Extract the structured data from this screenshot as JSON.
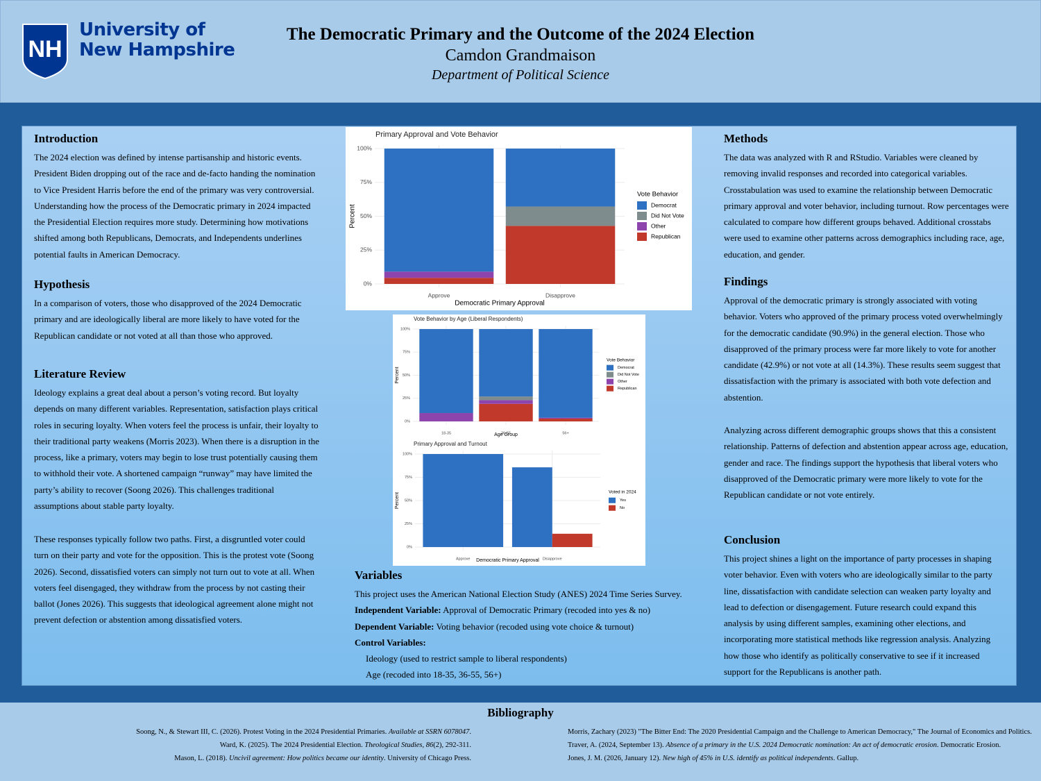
{
  "header": {
    "logo_mark": "NH",
    "logo_line1": "University of",
    "logo_line2": "New Hampshire",
    "title": "The Democratic Primary and the Outcome of the 2024 Election",
    "author": "Camdon Grandmaison",
    "department": "Department of Political Science"
  },
  "introduction": {
    "heading": "Introduction",
    "text": "The 2024 election was defined by intense partisanship and historic events. President Biden dropping out of the race and de-facto handing the nomination to Vice President Harris before the end of the primary was very controversial. Understanding how the process of the Democratic primary in 2024 impacted the Presidential Election requires more study. Determining how motivations shifted among both Republicans, Democrats, and Independents underlines potential faults in American Democracy."
  },
  "hypothesis": {
    "heading": "Hypothesis",
    "text": "In a comparison of voters, those who disapproved of the 2024 Democratic primary and are ideologically liberal are more likely to have voted for the Republican candidate or not voted at all than those who approved."
  },
  "literature_review": {
    "heading": "Literature Review",
    "paragraphs": [
      "Ideology explains a great deal about a person’s voting record. But loyalty depends on many different variables. Representation, satisfaction plays critical roles in securing loyalty. When voters feel the process is unfair, their loyalty to their traditional party weakens (Morris 2023).  When there is a disruption in the process, like a primary, voters may begin to lose trust potentially causing them to withhold their vote. A shortened campaign “runway” may have limited the party’s ability to recover (Soong 2026). This challenges traditional assumptions about stable party loyalty.",
      "These responses typically follow two paths. First, a disgruntled voter could turn on their party and vote for the opposition. This is the protest vote (Soong 2026). Second, dissatisfied voters can simply not turn out to vote at all. When voters feel disengaged, they withdraw from the process by not casting their ballot (Jones 2026). This suggests that ideological agreement alone might not prevent defection or abstention among dissatisfied voters."
    ]
  },
  "charts": [
    {
      "type": "stacked_bar",
      "title": "Primary Approval and Vote Behavior",
      "x_label": "Democratic Primary Approval",
      "y_label": "Percent",
      "legend_title": "Vote Behavior",
      "categories": [
        "Approve",
        "Disapprove"
      ],
      "series": [
        {
          "name": "Democrat",
          "color": "#2e70c1",
          "values": [
            90.9,
            42.8
          ]
        },
        {
          "name": "Did Not Vote",
          "color": "#7f8c8d",
          "values": [
            0,
            14.3
          ]
        },
        {
          "name": "Other",
          "color": "#8e44ad",
          "values": [
            4.6,
            0
          ]
        },
        {
          "name": "Republican",
          "color": "#c0392b",
          "values": [
            4.5,
            42.9
          ]
        }
      ],
      "ylim": [
        0,
        100
      ],
      "yticks": [
        {
          "value": 0,
          "label": "0%"
        },
        {
          "value": 25,
          "label": "25%"
        },
        {
          "value": 50,
          "label": "50%"
        },
        {
          "value": 75,
          "label": "75%"
        },
        {
          "value": 100,
          "label": "100%"
        }
      ],
      "grid": true
    },
    {
      "type": "stacked_bar",
      "title": "Vote Behavior by Age (Liberal Respondents)",
      "x_label": "Age Group",
      "y_label": "Percent",
      "legend_title": "Vote Behavior",
      "categories": [
        "18-35",
        "36-55",
        "56+"
      ],
      "series": [
        {
          "name": "Democrat",
          "color": "#2e70c1",
          "values": [
            91,
            73,
            96
          ]
        },
        {
          "name": "Did Not Vote",
          "color": "#7f8c8d",
          "values": [
            0,
            4,
            0
          ]
        },
        {
          "name": "Other",
          "color": "#8e44ad",
          "values": [
            9,
            4,
            1
          ]
        },
        {
          "name": "Republican",
          "color": "#c0392b",
          "values": [
            0,
            19,
            3
          ]
        }
      ],
      "ylim": [
        0,
        100
      ],
      "yticks": [
        {
          "value": 0,
          "label": "0%"
        },
        {
          "value": 25,
          "label": "25%"
        },
        {
          "value": 50,
          "label": "50%"
        },
        {
          "value": 75,
          "label": "75%"
        },
        {
          "value": 100,
          "label": "100%"
        }
      ],
      "grid": true
    },
    {
      "type": "grouped_bar",
      "title": "Primary Approval and Turnout",
      "x_label": "Democratic Primary Approval",
      "y_label": "Percent",
      "legend_title": "Voted in 2024",
      "categories": [
        "Approve",
        "Disapprove"
      ],
      "series": [
        {
          "name": "Yes",
          "color": "#2e70c1",
          "values": [
            100,
            85.7
          ]
        },
        {
          "name": "No",
          "color": "#c0392b",
          "values": [
            null,
            14.3
          ]
        }
      ],
      "ylim": [
        0,
        100
      ],
      "yticks": [
        {
          "value": 0,
          "label": "0%"
        },
        {
          "value": 25,
          "label": "25%"
        },
        {
          "value": 50,
          "label": "50%"
        },
        {
          "value": 75,
          "label": "75%"
        },
        {
          "value": 100,
          "label": "100%"
        }
      ],
      "grid": true
    }
  ],
  "variables": {
    "heading": "Variables",
    "intro": "This project uses the American National Election Study (ANES) 2024 Time Series Survey.",
    "items": [
      {
        "label": "Independent Variable:",
        "text": "Approval of Democratic Primary (recoded into yes & no)"
      },
      {
        "label": "Dependent Variable:",
        "text": "Voting behavior (recoded using vote choice & turnout)"
      }
    ],
    "control_label": "Control Variables:",
    "controls": [
      "Ideology (used to restrict sample to liberal respondents)",
      "Age (recoded into 18-35, 36-55, 56+)"
    ]
  },
  "methods": {
    "heading": "Methods",
    "text": "The data was analyzed with R and RStudio. Variables were cleaned by removing invalid responses and recorded into categorical variables. Crosstabulation was used to examine the relationship between Democratic primary approval and voter behavior, including turnout. Row percentages were calculated to compare how different groups behaved. Additional crosstabs were used to examine other patterns across demographics including race, age, education, and gender."
  },
  "findings": {
    "heading": "Findings",
    "paragraphs": [
      "Approval of the democratic primary is strongly associated with voting behavior. Voters who approved of the primary process voted overwhelmingly for the democratic candidate (90.9%) in the general election. Those who disapproved of the primary process were far more likely to vote for another candidate (42.9%) or not vote at all (14.3%). These results seem suggest that dissatisfaction with the primary is associated with both vote defection and abstention.",
      "Analyzing across different demographic groups shows that this a consistent relationship. Patterns of defection and abstention appear across age, education, gender and race. The findings support the hypothesis that liberal voters who disapproved of the Democratic primary were more likely to vote for the Republican candidate or not vote entirely."
    ]
  },
  "conclusion": {
    "heading": "Conclusion",
    "text": "This project shines a light on the importance of party processes in shaping voter behavior. Even with voters who are ideologically similar to the party line, dissatisfaction with candidate selection can weaken party loyalty and lead to defection or disengagement. Future research could expand this analysis by using different samples, examining other elections, and incorporating more statistical methods like regression analysis. Analyzing how those who identify as politically conservative to see if it increased support for the Republicans is another path."
  },
  "bibliography": {
    "heading": "Bibliography",
    "left": [
      [
        "Soong, N., & Stewart III, C. (2026). Protest Voting in the 2024 Presidential Primaries. ",
        "Available at SSRN 6078047",
        "."
      ],
      [
        "Ward, K. (2025). The 2024 Presidential Election. ",
        "Theological Studies, 86",
        "(2), 292-311."
      ],
      [
        "Mason, L. (2018). ",
        "Uncivil agreement: How politics became our identity",
        ". University of Chicago Press."
      ]
    ],
    "right": [
      [
        "Morris, Zachary (2023) \"The Bitter End: The 2020 Presidential Campaign and the Challenge to American Democracy,\" The Journal of Economics and Politics."
      ],
      [
        "Traver, A. (2024, September 13). ",
        "Absence of a primary in the U.S. 2024 Democratic nomination: An act of democratic erosion",
        ". Democratic Erosion."
      ],
      [
        "Jones, J. M. (2026, January 12). ",
        "New high of 45% in U.S. identify as political independents",
        ". Gallup."
      ]
    ]
  }
}
